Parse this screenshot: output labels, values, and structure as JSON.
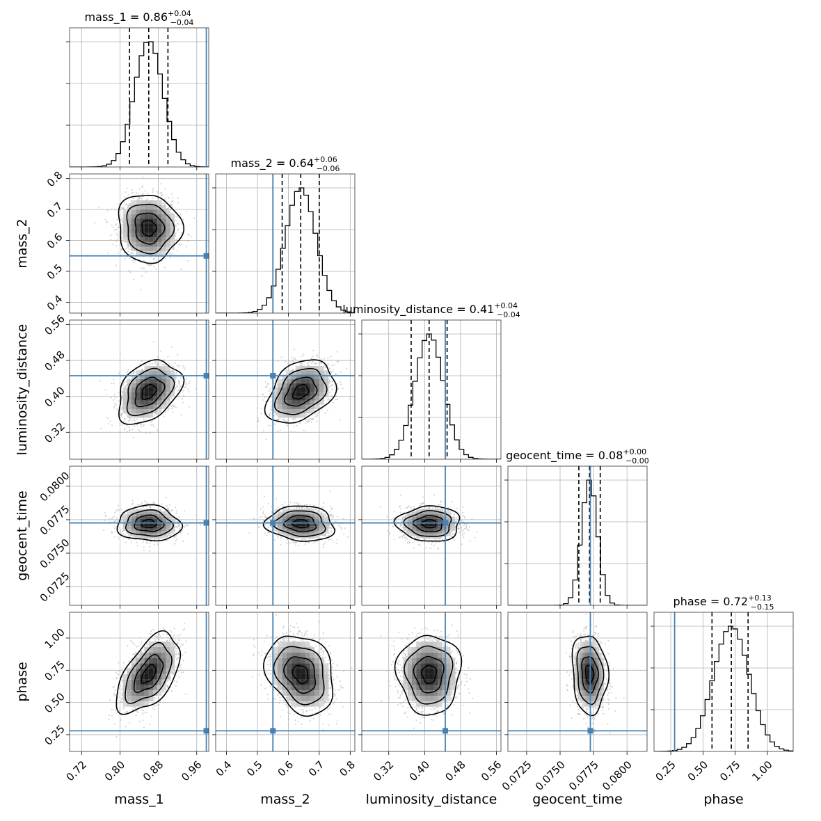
{
  "chart_data": {
    "type": "corner",
    "params": [
      "mass_1",
      "mass_2",
      "luminosity_distance",
      "geocent_time",
      "phase"
    ],
    "axis_labels": [
      "mass_1",
      "mass_2",
      "luminosity_distance",
      "geocent_time",
      "phase"
    ],
    "titles": [
      {
        "name": "mass_1",
        "value": "0.86",
        "plus": "+0.04",
        "minus": "−0.04"
      },
      {
        "name": "mass_2",
        "value": "0.64",
        "plus": "+0.06",
        "minus": "−0.06"
      },
      {
        "name": "luminosity_distance",
        "value": "0.41",
        "plus": "+0.04",
        "minus": "−0.04"
      },
      {
        "name": "geocent_time",
        "value": "0.08",
        "plus": "+0.00",
        "minus": "−0.00"
      },
      {
        "name": "phase",
        "value": "0.72",
        "plus": "+0.13",
        "minus": "−0.15"
      }
    ],
    "ranges": [
      [
        0.695,
        0.985
      ],
      [
        0.365,
        0.815
      ],
      [
        0.26,
        0.57
      ],
      [
        0.0711,
        0.0815
      ],
      [
        0.12,
        1.2
      ]
    ],
    "ticks": [
      {
        "values": [
          0.72,
          0.8,
          0.88,
          0.96
        ],
        "labels": [
          "0.72",
          "0.80",
          "0.88",
          "0.96"
        ]
      },
      {
        "values": [
          0.4,
          0.5,
          0.6,
          0.7,
          0.8
        ],
        "labels": [
          "0.4",
          "0.5",
          "0.6",
          "0.7",
          "0.8"
        ]
      },
      {
        "values": [
          0.32,
          0.4,
          0.48,
          0.56
        ],
        "labels": [
          "0.32",
          "0.40",
          "0.48",
          "0.56"
        ]
      },
      {
        "values": [
          0.0725,
          0.075,
          0.0775,
          0.08
        ],
        "labels": [
          "0.0725",
          "0.0750",
          "0.0775",
          "0.0800"
        ]
      },
      {
        "values": [
          0.25,
          0.5,
          0.75,
          1.0
        ],
        "labels": [
          "0.25",
          "0.50",
          "0.75",
          "1.00"
        ]
      }
    ],
    "truths": [
      0.98,
      0.55,
      0.446,
      0.07726,
      0.28
    ],
    "medians": [
      0.86,
      0.64,
      0.41,
      0.0772,
      0.72
    ],
    "quantiles": [
      [
        0.82,
        0.86,
        0.9
      ],
      [
        0.58,
        0.64,
        0.7
      ],
      [
        0.37,
        0.41,
        0.45
      ],
      [
        0.0764,
        0.0772,
        0.078
      ],
      [
        0.57,
        0.72,
        0.85
      ]
    ],
    "sigmas": [
      0.03,
      0.05,
      0.032,
      0.0006,
      0.14
    ],
    "correlations": [
      [
        1,
        0,
        0,
        0,
        0
      ],
      [
        -0.05,
        1,
        0,
        0,
        0
      ],
      [
        0.35,
        0.35,
        1,
        0,
        0
      ],
      [
        -0.05,
        -0.1,
        0.0,
        1,
        0
      ],
      [
        0.55,
        -0.25,
        0.0,
        -0.1,
        1
      ]
    ],
    "truth_color": "#4682b4",
    "line_color": "#000000",
    "point_color": "#b4b4b4"
  }
}
